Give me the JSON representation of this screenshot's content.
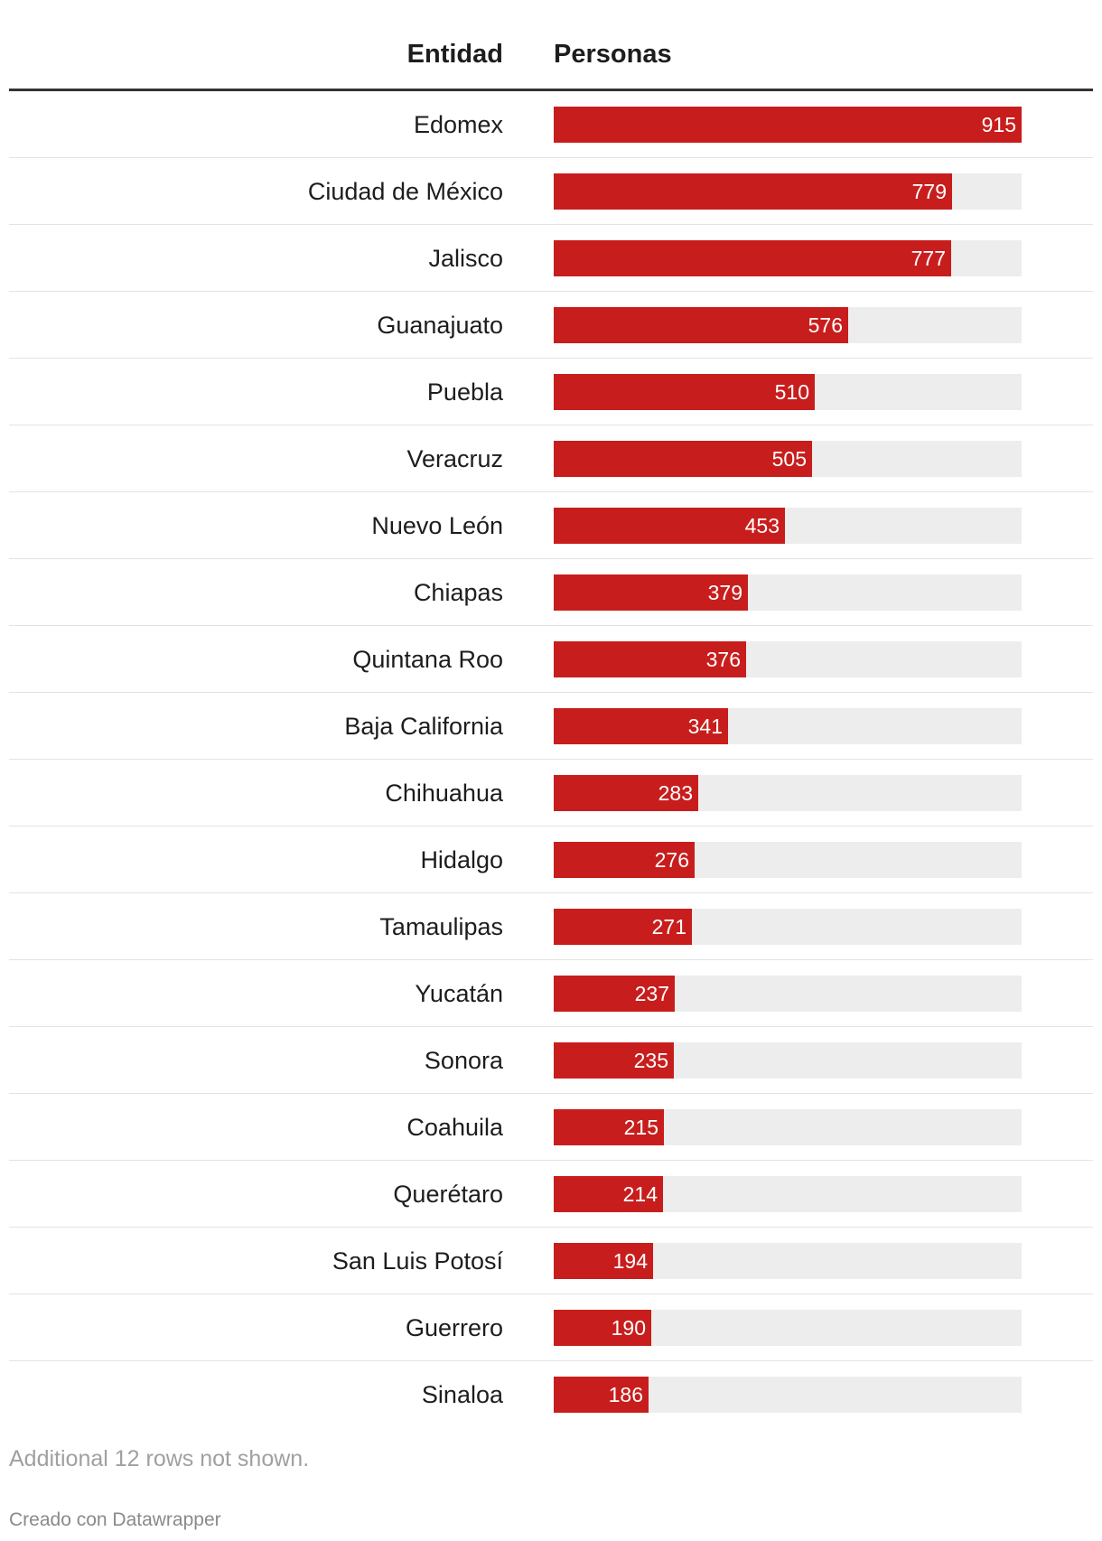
{
  "chart_data": {
    "type": "bar",
    "columns": {
      "entity": "Entidad",
      "value": "Personas"
    },
    "categories": [
      "Edomex",
      "Ciudad de México",
      "Jalisco",
      "Guanajuato",
      "Puebla",
      "Veracruz",
      "Nuevo León",
      "Chiapas",
      "Quintana Roo",
      "Baja California",
      "Chihuahua",
      "Hidalgo",
      "Tamaulipas",
      "Yucatán",
      "Sonora",
      "Coahuila",
      "Querétaro",
      "San Luis Potosí",
      "Guerrero",
      "Sinaloa"
    ],
    "values": [
      915,
      779,
      777,
      576,
      510,
      505,
      453,
      379,
      376,
      341,
      283,
      276,
      271,
      237,
      235,
      215,
      214,
      194,
      190,
      186
    ],
    "xlim": [
      0,
      915
    ],
    "bar_color": "#c71e1d",
    "track_color": "#ededed",
    "note": "Additional 12 rows not shown.",
    "credit": "Creado con Datawrapper"
  }
}
